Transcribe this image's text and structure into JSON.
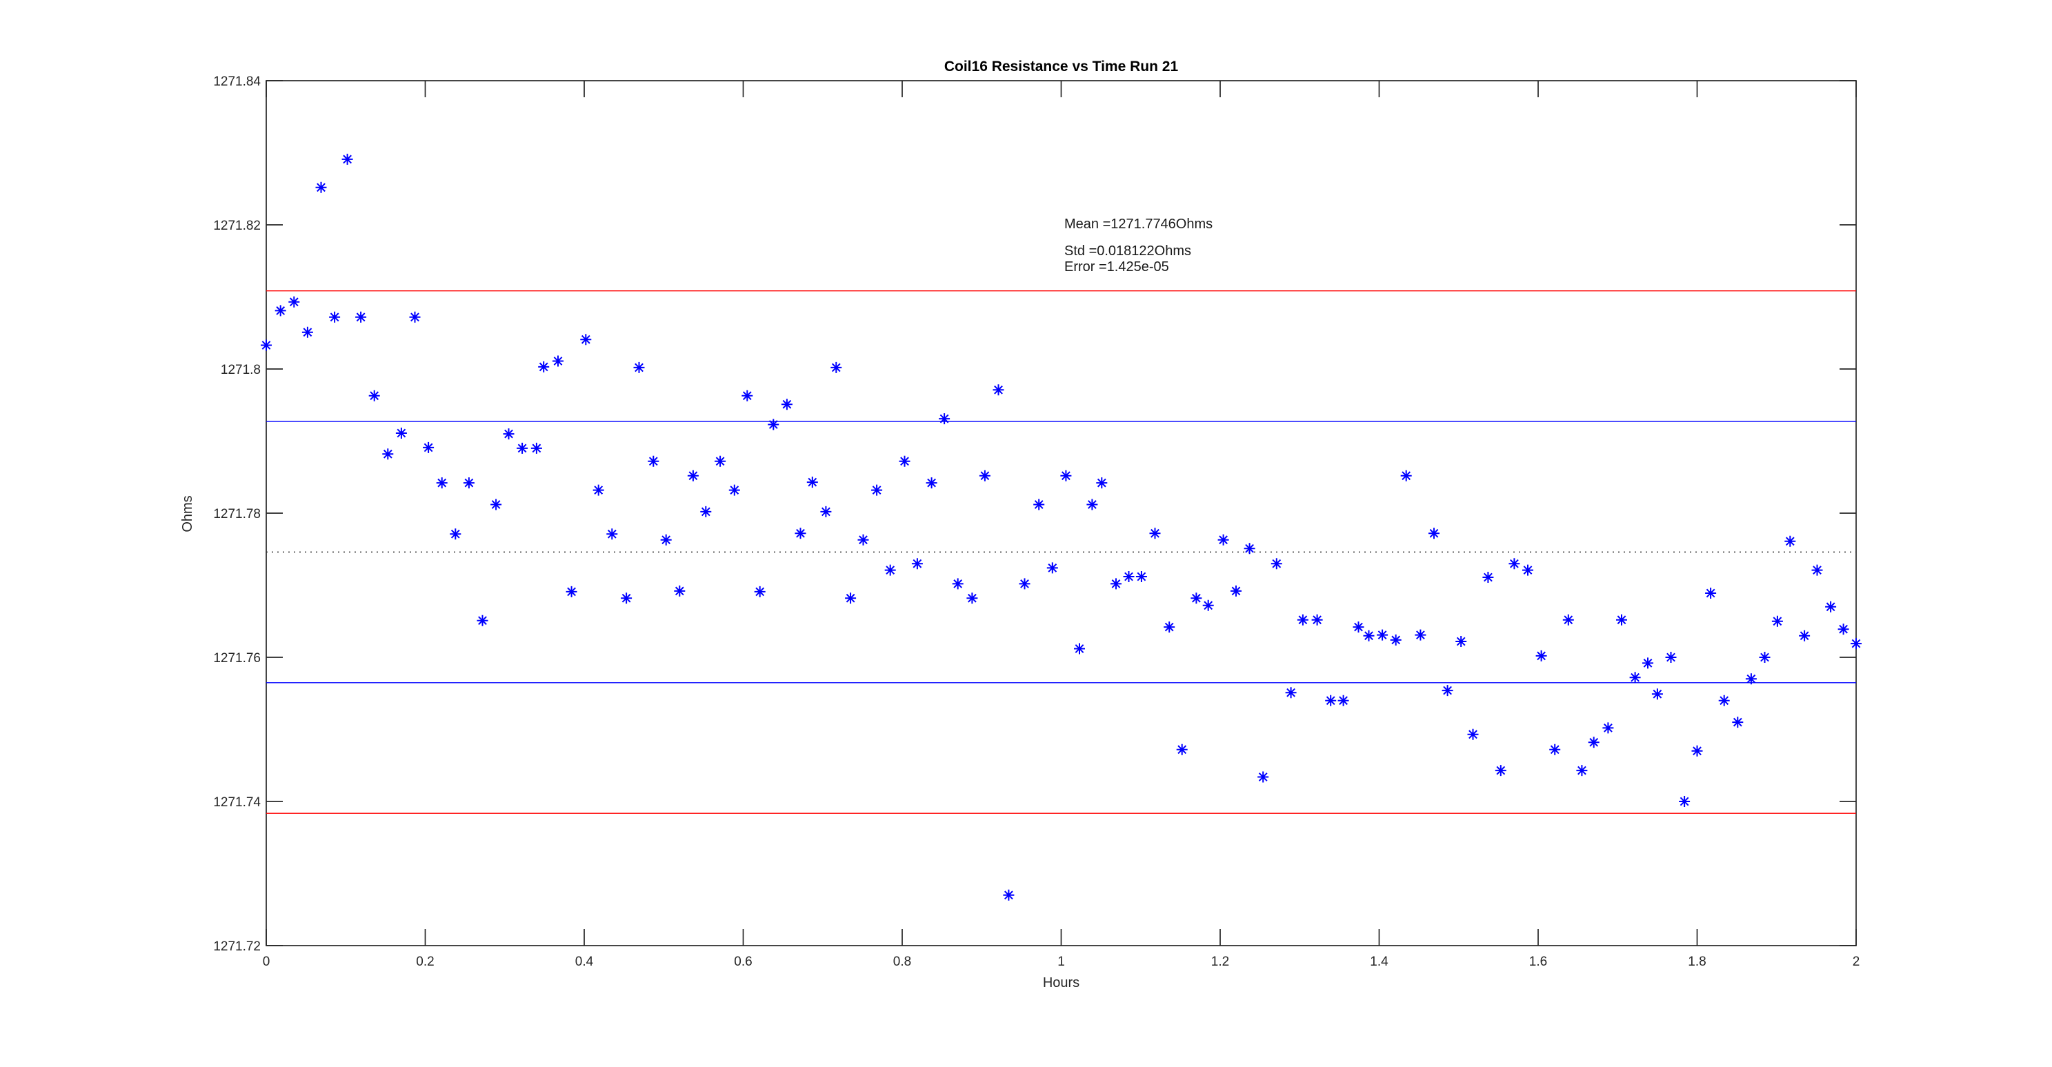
{
  "figure": {
    "title": "Coil16 Resistance vs Time Run 21"
  },
  "chart_data": {
    "type": "scatter",
    "title": "Coil16 Resistance vs Time Run 21",
    "xlabel": "Hours",
    "ylabel": "Ohms",
    "xlim": [
      0,
      2
    ],
    "ylim": [
      1271.72,
      1271.84
    ],
    "grid": false,
    "legend": "none",
    "marker": {
      "shape": "asterisk",
      "color": "#0000ff",
      "size": 8
    },
    "axis_color": "#262626",
    "stats": {
      "mean": 1271.7746,
      "std": 0.018122,
      "error": "1.425e-05"
    },
    "annotation": {
      "line1": "Mean =1271.7746Ohms",
      "line2": "Std =0.018122Ohms",
      "line3": "Error =1.425e-05"
    },
    "xticks": {
      "values": [
        0,
        0.2,
        0.4,
        0.6,
        0.8,
        1,
        1.2,
        1.4,
        1.6,
        1.8,
        2
      ],
      "labels": [
        "0",
        "0.2",
        "0.4",
        "0.6",
        "0.8",
        "1",
        "1.2",
        "1.4",
        "1.6",
        "1.8",
        "2"
      ]
    },
    "yticks": {
      "values": [
        1271.72,
        1271.74,
        1271.76,
        1271.78,
        1271.8,
        1271.82,
        1271.84
      ],
      "labels": [
        "1271.72",
        "1271.74",
        "1271.76",
        "1271.78",
        "1271.8",
        "1271.82",
        "1271.84"
      ]
    },
    "stat_lines": [
      {
        "name": "mean-plus-2std-line",
        "value": 1271.810844,
        "color": "#ff0000",
        "style": "solid"
      },
      {
        "name": "mean-plus-1std-line",
        "value": 1271.792722,
        "color": "#0000ff",
        "style": "solid"
      },
      {
        "name": "mean-line",
        "value": 1271.7746,
        "color": "#333333",
        "style": "dotted"
      },
      {
        "name": "mean-minus-1std-line",
        "value": 1271.756478,
        "color": "#0000ff",
        "style": "solid"
      },
      {
        "name": "mean-minus-2std-line",
        "value": 1271.738356,
        "color": "#ff0000",
        "style": "solid"
      }
    ],
    "points": [
      [
        0.0,
        1271.8033
      ],
      [
        0.018,
        1271.8081
      ],
      [
        0.035,
        1271.8093
      ],
      [
        0.052,
        1271.8051
      ],
      [
        0.069,
        1271.8252
      ],
      [
        0.086,
        1271.8072
      ],
      [
        0.102,
        1271.8291
      ],
      [
        0.119,
        1271.8072
      ],
      [
        0.136,
        1271.7963
      ],
      [
        0.153,
        1271.7882
      ],
      [
        0.17,
        1271.7911
      ],
      [
        0.187,
        1271.8072
      ],
      [
        0.204,
        1271.7891
      ],
      [
        0.221,
        1271.7842
      ],
      [
        0.238,
        1271.7771
      ],
      [
        0.255,
        1271.7842
      ],
      [
        0.272,
        1271.7651
      ],
      [
        0.289,
        1271.7812
      ],
      [
        0.305,
        1271.791
      ],
      [
        0.322,
        1271.789
      ],
      [
        0.34,
        1271.789
      ],
      [
        0.349,
        1271.8003
      ],
      [
        0.367,
        1271.8011
      ],
      [
        0.384,
        1271.7691
      ],
      [
        0.402,
        1271.8041
      ],
      [
        0.418,
        1271.7832
      ],
      [
        0.435,
        1271.7771
      ],
      [
        0.453,
        1271.7682
      ],
      [
        0.469,
        1271.8002
      ],
      [
        0.487,
        1271.7872
      ],
      [
        0.503,
        1271.7763
      ],
      [
        0.52,
        1271.7692
      ],
      [
        0.537,
        1271.7852
      ],
      [
        0.553,
        1271.7802
      ],
      [
        0.571,
        1271.7872
      ],
      [
        0.589,
        1271.7832
      ],
      [
        0.605,
        1271.7963
      ],
      [
        0.621,
        1271.7691
      ],
      [
        0.638,
        1271.7923
      ],
      [
        0.655,
        1271.7951
      ],
      [
        0.672,
        1271.7772
      ],
      [
        0.687,
        1271.7843
      ],
      [
        0.704,
        1271.7802
      ],
      [
        0.717,
        1271.8002
      ],
      [
        0.735,
        1271.7682
      ],
      [
        0.751,
        1271.7763
      ],
      [
        0.768,
        1271.7832
      ],
      [
        0.785,
        1271.7721
      ],
      [
        0.803,
        1271.7872
      ],
      [
        0.819,
        1271.773
      ],
      [
        0.837,
        1271.7842
      ],
      [
        0.853,
        1271.7931
      ],
      [
        0.87,
        1271.7702
      ],
      [
        0.888,
        1271.7682
      ],
      [
        0.904,
        1271.7852
      ],
      [
        0.921,
        1271.7971
      ],
      [
        0.934,
        1271.727
      ],
      [
        0.954,
        1271.7702
      ],
      [
        0.972,
        1271.7812
      ],
      [
        0.989,
        1271.7724
      ],
      [
        1.006,
        1271.7852
      ],
      [
        1.023,
        1271.7612
      ],
      [
        1.039,
        1271.7812
      ],
      [
        1.051,
        1271.7842
      ],
      [
        1.069,
        1271.7702
      ],
      [
        1.085,
        1271.7712
      ],
      [
        1.101,
        1271.7712
      ],
      [
        1.118,
        1271.7772
      ],
      [
        1.136,
        1271.7642
      ],
      [
        1.152,
        1271.7472
      ],
      [
        1.17,
        1271.7682
      ],
      [
        1.185,
        1271.7672
      ],
      [
        1.204,
        1271.7763
      ],
      [
        1.22,
        1271.7692
      ],
      [
        1.237,
        1271.7751
      ],
      [
        1.254,
        1271.7434
      ],
      [
        1.271,
        1271.773
      ],
      [
        1.289,
        1271.7551
      ],
      [
        1.304,
        1271.7652
      ],
      [
        1.322,
        1271.7652
      ],
      [
        1.339,
        1271.754
      ],
      [
        1.355,
        1271.754
      ],
      [
        1.374,
        1271.7642
      ],
      [
        1.387,
        1271.763
      ],
      [
        1.404,
        1271.7631
      ],
      [
        1.421,
        1271.7624
      ],
      [
        1.434,
        1271.7852
      ],
      [
        1.452,
        1271.7631
      ],
      [
        1.469,
        1271.7772
      ],
      [
        1.486,
        1271.7554
      ],
      [
        1.503,
        1271.7622
      ],
      [
        1.518,
        1271.7493
      ],
      [
        1.537,
        1271.7711
      ],
      [
        1.553,
        1271.7443
      ],
      [
        1.57,
        1271.773
      ],
      [
        1.587,
        1271.7721
      ],
      [
        1.604,
        1271.7602
      ],
      [
        1.621,
        1271.7472
      ],
      [
        1.638,
        1271.7652
      ],
      [
        1.655,
        1271.7443
      ],
      [
        1.67,
        1271.7482
      ],
      [
        1.688,
        1271.7502
      ],
      [
        1.705,
        1271.7652
      ],
      [
        1.722,
        1271.7572
      ],
      [
        1.738,
        1271.7592
      ],
      [
        1.75,
        1271.7549
      ],
      [
        1.767,
        1271.76
      ],
      [
        1.784,
        1271.74
      ],
      [
        1.8,
        1271.747
      ],
      [
        1.817,
        1271.7689
      ],
      [
        1.834,
        1271.754
      ],
      [
        1.851,
        1271.751
      ],
      [
        1.868,
        1271.757
      ],
      [
        1.885,
        1271.76
      ],
      [
        1.901,
        1271.765
      ],
      [
        1.917,
        1271.7761
      ],
      [
        1.935,
        1271.763
      ],
      [
        1.951,
        1271.7721
      ],
      [
        1.968,
        1271.767
      ],
      [
        1.984,
        1271.7639
      ],
      [
        2.0,
        1271.7619
      ]
    ]
  }
}
